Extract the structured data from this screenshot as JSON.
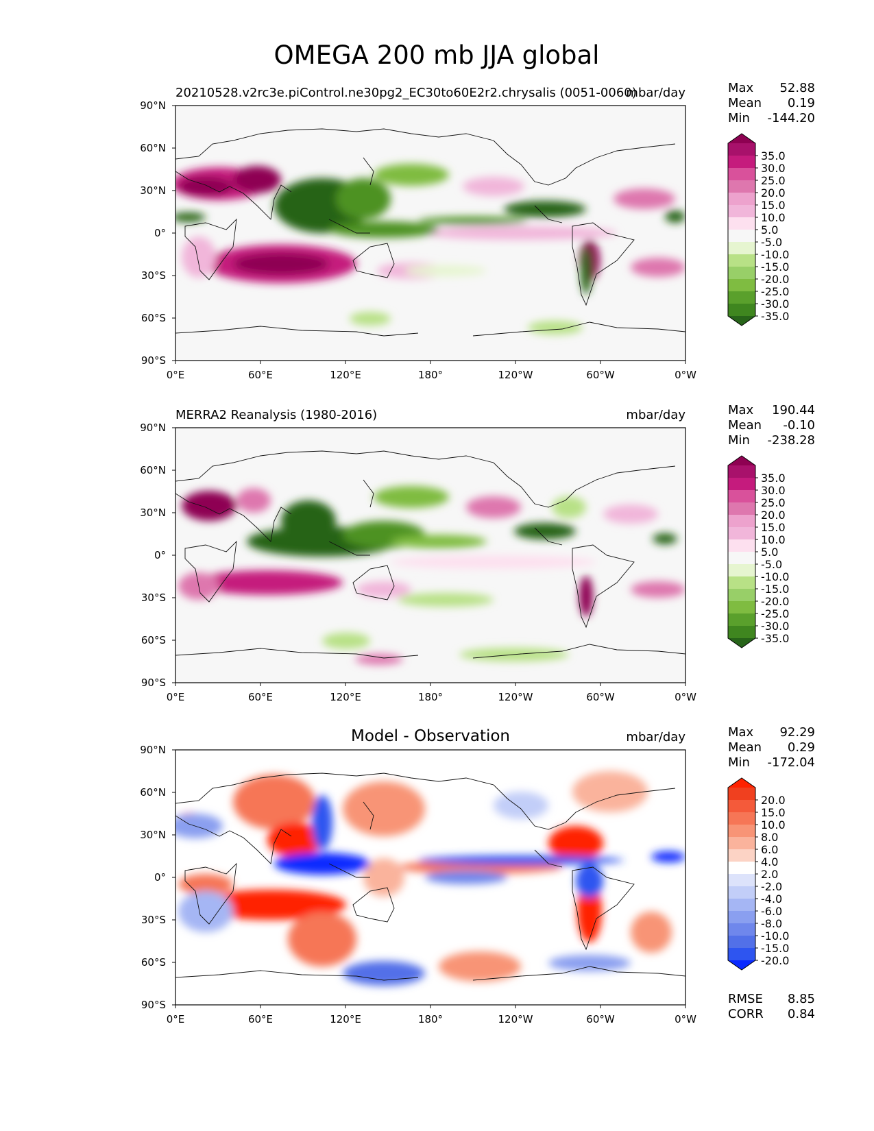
{
  "figure": {
    "title": "OMEGA 200 mb JJA global"
  },
  "chart_data": [
    {
      "type": "heatmap",
      "subtitle_left": "20210528.v2rc3e.piControl.ne30pg2_EC30to60E2r2.chrysalis (0051-0060)",
      "subtitle_right": "mbar/day",
      "xticks": [
        "0°E",
        "60°E",
        "120°E",
        "180°",
        "120°W",
        "60°W",
        "0°W"
      ],
      "yticks": [
        "90°N",
        "60°N",
        "30°N",
        "0°",
        "30°S",
        "60°S",
        "90°S"
      ],
      "xlim": [
        0,
        360
      ],
      "ylim": [
        -90,
        90
      ],
      "stats": {
        "max_label": "Max",
        "max": "52.88",
        "mean_label": "Mean",
        "mean": "0.19",
        "min_label": "Min",
        "min": "-144.20"
      },
      "colorbar": {
        "levels": [
          "35.0",
          "30.0",
          "25.0",
          "20.0",
          "15.0",
          "10.0",
          "5.0",
          "-5.0",
          "-10.0",
          "-15.0",
          "-20.0",
          "-25.0",
          "-30.0",
          "-35.0"
        ],
        "colors": [
          "#8e0152",
          "#a8116b",
          "#c51b7d",
          "#d9519b",
          "#de77ae",
          "#eda2cd",
          "#f1b6da",
          "#fde0ef",
          "#f7f7f7",
          "#e6f5d0",
          "#b8e186",
          "#98cf68",
          "#7fbc41",
          "#5aa02c",
          "#3f861f",
          "#276419"
        ]
      },
      "footer": null
    },
    {
      "type": "heatmap",
      "subtitle_left": "MERRA2 Reanalysis (1980-2016)",
      "subtitle_right": "mbar/day",
      "xticks": [
        "0°E",
        "60°E",
        "120°E",
        "180°",
        "120°W",
        "60°W",
        "0°W"
      ],
      "yticks": [
        "90°N",
        "60°N",
        "30°N",
        "0°",
        "30°S",
        "60°S",
        "90°S"
      ],
      "xlim": [
        0,
        360
      ],
      "ylim": [
        -90,
        90
      ],
      "stats": {
        "max_label": "Max",
        "max": "190.44",
        "mean_label": "Mean",
        "mean": "-0.10",
        "min_label": "Min",
        "min": "-238.28"
      },
      "colorbar": {
        "levels": [
          "35.0",
          "30.0",
          "25.0",
          "20.0",
          "15.0",
          "10.0",
          "5.0",
          "-5.0",
          "-10.0",
          "-15.0",
          "-20.0",
          "-25.0",
          "-30.0",
          "-35.0"
        ],
        "colors": [
          "#8e0152",
          "#a8116b",
          "#c51b7d",
          "#d9519b",
          "#de77ae",
          "#eda2cd",
          "#f1b6da",
          "#fde0ef",
          "#f7f7f7",
          "#e6f5d0",
          "#b8e186",
          "#98cf68",
          "#7fbc41",
          "#5aa02c",
          "#3f861f",
          "#276419"
        ]
      },
      "footer": null
    },
    {
      "type": "heatmap",
      "title": "Model - Observation",
      "subtitle_right": "mbar/day",
      "xticks": [
        "0°E",
        "60°E",
        "120°E",
        "180°",
        "120°W",
        "60°W",
        "0°W"
      ],
      "yticks": [
        "90°N",
        "60°N",
        "30°N",
        "0°",
        "30°S",
        "60°S",
        "90°S"
      ],
      "xlim": [
        0,
        360
      ],
      "ylim": [
        -90,
        90
      ],
      "stats": {
        "max_label": "Max",
        "max": "92.29",
        "mean_label": "Mean",
        "mean": "0.29",
        "min_label": "Min",
        "min": "-172.04"
      },
      "colorbar": {
        "levels": [
          "20.0",
          "15.0",
          "10.0",
          "8.0",
          "6.0",
          "4.0",
          "2.0",
          "-2.0",
          "-4.0",
          "-6.0",
          "-8.0",
          "-10.0",
          "-15.0",
          "-20.0"
        ],
        "colors": [
          "#ff2200",
          "#f0401f",
          "#f45a3a",
          "#f67656",
          "#f89476",
          "#fab39c",
          "#fcd3c5",
          "#ffffff",
          "#dde3fb",
          "#c2cef8",
          "#a5b6f4",
          "#8a9ff0",
          "#6f87ec",
          "#5270e8",
          "#2e55f0",
          "#0a2aff"
        ]
      },
      "footer": {
        "rmse_label": "RMSE",
        "rmse": "8.85",
        "corr_label": "CORR",
        "corr": "0.84"
      }
    }
  ]
}
